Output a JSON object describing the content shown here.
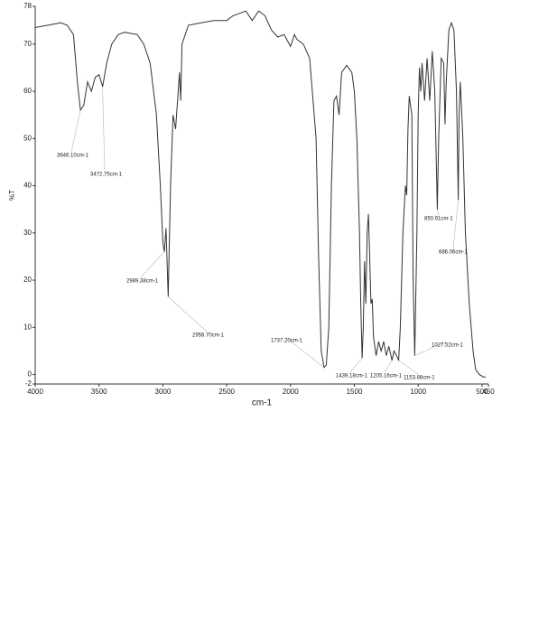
{
  "chart_data": {
    "type": "line",
    "xlabel": "cm-1",
    "ylabel": "%T",
    "xlim": [
      4000,
      450
    ],
    "ylim": [
      -2,
      78
    ],
    "xticks": [
      4000,
      3500,
      3000,
      2500,
      2000,
      1500,
      1000,
      500,
      450
    ],
    "yticks": [
      -2,
      0,
      10,
      20,
      30,
      40,
      50,
      60,
      70,
      78
    ],
    "series": [
      {
        "color": "#333333",
        "x": [
          4000,
          3900,
          3800,
          3750,
          3700,
          3670,
          3646,
          3620,
          3590,
          3560,
          3530,
          3500,
          3472,
          3440,
          3400,
          3350,
          3300,
          3200,
          3150,
          3100,
          3050,
          3020,
          3000,
          2989,
          2975,
          2958,
          2940,
          2920,
          2900,
          2880,
          2870,
          2860,
          2850,
          2800,
          2700,
          2600,
          2500,
          2450,
          2400,
          2350,
          2300,
          2250,
          2200,
          2150,
          2100,
          2050,
          2000,
          1970,
          1950,
          1900,
          1850,
          1800,
          1780,
          1760,
          1737,
          1720,
          1700,
          1680,
          1660,
          1640,
          1620,
          1600,
          1560,
          1520,
          1500,
          1480,
          1460,
          1450,
          1439,
          1430,
          1420,
          1410,
          1400,
          1390,
          1380,
          1370,
          1360,
          1350,
          1330,
          1310,
          1290,
          1270,
          1250,
          1230,
          1205,
          1190,
          1170,
          1153,
          1140,
          1120,
          1100,
          1090,
          1080,
          1070,
          1050,
          1040,
          1027,
          1010,
          1000,
          990,
          980,
          970,
          950,
          930,
          910,
          890,
          870,
          850,
          840,
          820,
          800,
          790,
          780,
          760,
          740,
          720,
          700,
          686,
          680,
          670,
          650,
          630,
          600,
          570,
          550,
          520,
          490,
          470
        ],
        "values": [
          73.5,
          74,
          74.5,
          74,
          72,
          62,
          56,
          57,
          62,
          60,
          63,
          63.5,
          61,
          66,
          70,
          72,
          72.5,
          72,
          70,
          66,
          55,
          40,
          28,
          26,
          31,
          16.5,
          40,
          55,
          52,
          60,
          64,
          58,
          70,
          74,
          74.5,
          75,
          75,
          76,
          76.5,
          77,
          75,
          77,
          76,
          73,
          71.5,
          72,
          69.5,
          72,
          71,
          70,
          67,
          50,
          25,
          5,
          1.5,
          2,
          10,
          40,
          58,
          59,
          55,
          64,
          65.5,
          64,
          60,
          50,
          30,
          15,
          3.5,
          10,
          24,
          15,
          30,
          34,
          25,
          15,
          16,
          8,
          4,
          7,
          5,
          7,
          4,
          6,
          3,
          5,
          4,
          3,
          10,
          30,
          40,
          38,
          52,
          59,
          55,
          20,
          4,
          30,
          55,
          65,
          60,
          66,
          58,
          67,
          58,
          68.5,
          60,
          35,
          50,
          67,
          66,
          53,
          62,
          73,
          74.5,
          73,
          60,
          37,
          55,
          62,
          50,
          30,
          15,
          5,
          1,
          0,
          -0.5,
          -0.5
        ]
      }
    ],
    "annotations": [
      {
        "text": "3646.10cm-1",
        "x": 3646.1,
        "y": 56
      },
      {
        "text": "3472.75cm-1",
        "x": 3472.75,
        "y": 61
      },
      {
        "text": "2989.38cm-1",
        "x": 2989.38,
        "y": 26
      },
      {
        "text": "2958.70cm-1",
        "x": 2958.7,
        "y": 16.5
      },
      {
        "text": "1737.20cm-1",
        "x": 1737.2,
        "y": 1.5
      },
      {
        "text": "1439.18cm-1",
        "x": 1439.18,
        "y": 3.5
      },
      {
        "text": "1205.16cm-1",
        "x": 1205.16,
        "y": 3
      },
      {
        "text": "1153.88cm-1",
        "x": 1153.88,
        "y": 3
      },
      {
        "text": "1027.52cm-1",
        "x": 1027.52,
        "y": 4
      },
      {
        "text": "850.91cm-1",
        "x": 850.91,
        "y": 35
      },
      {
        "text": "686.06cm-1",
        "x": 686.06,
        "y": 37
      }
    ]
  }
}
